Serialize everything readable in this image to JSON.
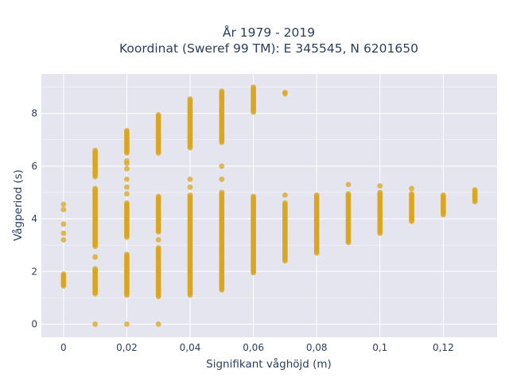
{
  "chart_data": {
    "type": "scatter",
    "title_lines": [
      "År 1979 - 2019",
      "Koordinat (Sweref 99 TM): E 345545, N 6201650"
    ],
    "xlabel": "Signifikant våghöjd (m)",
    "ylabel": "Vågperiod (s)",
    "xlim": [
      -0.007,
      0.137
    ],
    "ylim": [
      -0.5,
      9.5
    ],
    "x_ticks": [
      0,
      0.02,
      0.04,
      0.06,
      0.08,
      0.1,
      0.12
    ],
    "x_tick_labels": [
      "0",
      "0,02",
      "0,04",
      "0,06",
      "0,08",
      "0,1",
      "0,12"
    ],
    "y_ticks": [
      0,
      2,
      4,
      6,
      8
    ],
    "y_tick_labels": [
      "0",
      "2",
      "4",
      "6",
      "8"
    ],
    "grid": true,
    "marker_color": "#DAA520",
    "plot_bg": "#E5E5F0",
    "columns": [
      {
        "x": 0.0,
        "ranges": [
          [
            1.45,
            1.9
          ]
        ],
        "points": [
          3.2,
          3.45,
          3.8,
          4.35,
          4.55
        ]
      },
      {
        "x": 0.01,
        "ranges": [
          [
            1.15,
            2.1
          ],
          [
            2.95,
            5.15
          ],
          [
            5.6,
            6.6
          ]
        ],
        "points": [
          0,
          2.55
        ]
      },
      {
        "x": 0.02,
        "ranges": [
          [
            1.1,
            2.65
          ],
          [
            3.3,
            4.6
          ],
          [
            6.5,
            7.35
          ]
        ],
        "points": [
          0,
          4.95,
          5.2,
          5.5,
          5.9,
          6.1,
          6.2
        ]
      },
      {
        "x": 0.03,
        "ranges": [
          [
            1.05,
            2.9
          ],
          [
            3.5,
            4.85
          ],
          [
            6.5,
            7.95
          ]
        ],
        "points": [
          0,
          3.2
        ]
      },
      {
        "x": 0.04,
        "ranges": [
          [
            1.1,
            4.9
          ],
          [
            6.7,
            8.55
          ]
        ],
        "points": [
          5.2,
          5.5
        ]
      },
      {
        "x": 0.05,
        "ranges": [
          [
            1.3,
            5.0
          ],
          [
            6.9,
            8.85
          ]
        ],
        "points": [
          5.5,
          6.0
        ]
      },
      {
        "x": 0.06,
        "ranges": [
          [
            1.95,
            4.85
          ],
          [
            8.05,
            9.0
          ]
        ],
        "points": []
      },
      {
        "x": 0.07,
        "ranges": [
          [
            2.4,
            4.6
          ]
        ],
        "points": [
          4.9,
          8.75,
          8.8
        ]
      },
      {
        "x": 0.08,
        "ranges": [
          [
            2.7,
            4.9
          ]
        ],
        "points": []
      },
      {
        "x": 0.09,
        "ranges": [
          [
            3.1,
            4.95
          ]
        ],
        "points": [
          5.3
        ]
      },
      {
        "x": 0.1,
        "ranges": [
          [
            3.45,
            5.0
          ]
        ],
        "points": [
          5.25
        ]
      },
      {
        "x": 0.11,
        "ranges": [
          [
            3.9,
            4.95
          ]
        ],
        "points": [
          5.15
        ]
      },
      {
        "x": 0.12,
        "ranges": [
          [
            4.15,
            4.9
          ]
        ],
        "points": []
      },
      {
        "x": 0.13,
        "ranges": [
          [
            4.65,
            5.1
          ]
        ],
        "points": []
      }
    ]
  }
}
